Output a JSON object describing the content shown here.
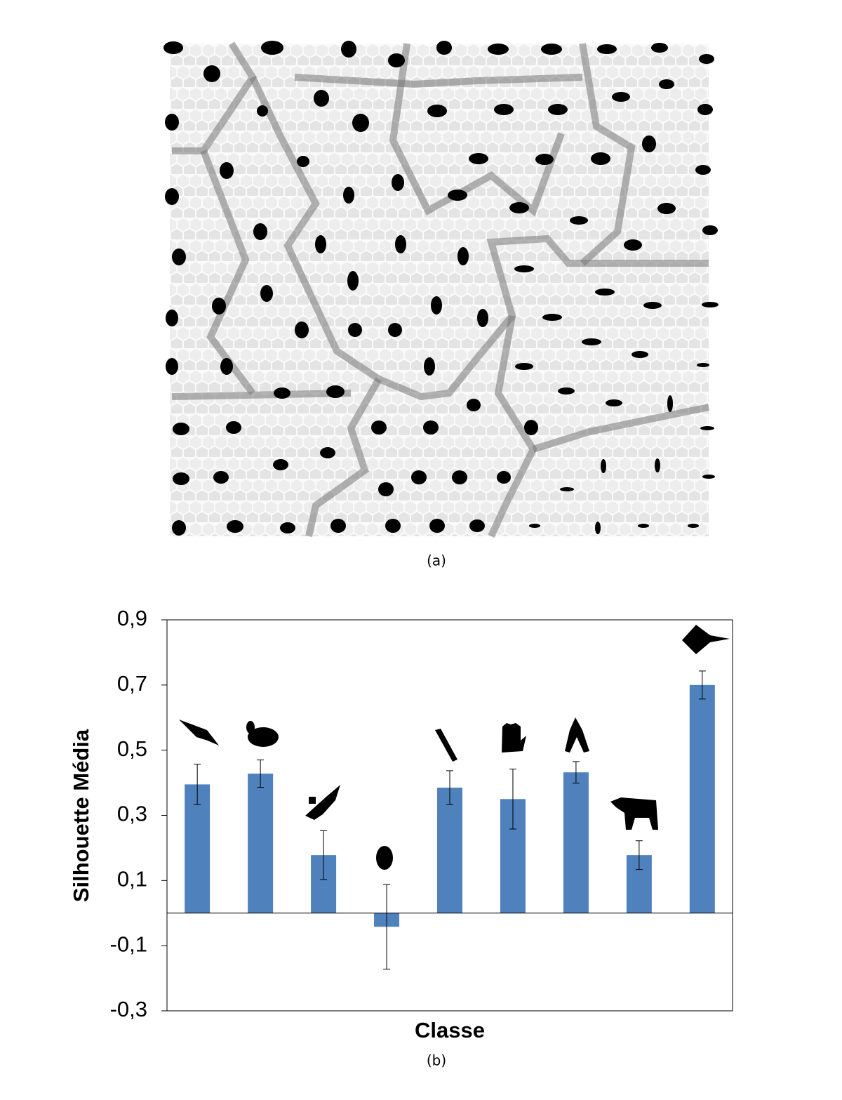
{
  "caption_a": "(a)",
  "chart_data": {
    "type": "bar",
    "caption": "(b)",
    "xlabel": "Classe",
    "ylabel": "Silhouette Média",
    "categories": [
      null,
      null,
      null,
      null,
      null,
      null,
      null,
      null,
      null
    ],
    "values": [
      0.395,
      0.428,
      0.178,
      -0.042,
      0.385,
      0.35,
      0.432,
      0.178,
      0.7
    ],
    "errors": [
      0.062,
      0.042,
      0.075,
      0.13,
      0.052,
      0.092,
      0.033,
      0.044,
      0.043
    ],
    "color": "#4f81bd",
    "ylim": [
      -0.3,
      0.9
    ],
    "yticks": [
      {
        "value": -0.3,
        "label": "-0,3"
      },
      {
        "value": -0.1,
        "label": "-0,1"
      },
      {
        "value": 0.1,
        "label": "0,1"
      },
      {
        "value": 0.3,
        "label": "0,3"
      },
      {
        "value": 0.5,
        "label": "0,5"
      },
      {
        "value": 0.7,
        "label": "0,7"
      },
      {
        "value": 0.9,
        "label": "0,9"
      }
    ],
    "grid": false
  }
}
